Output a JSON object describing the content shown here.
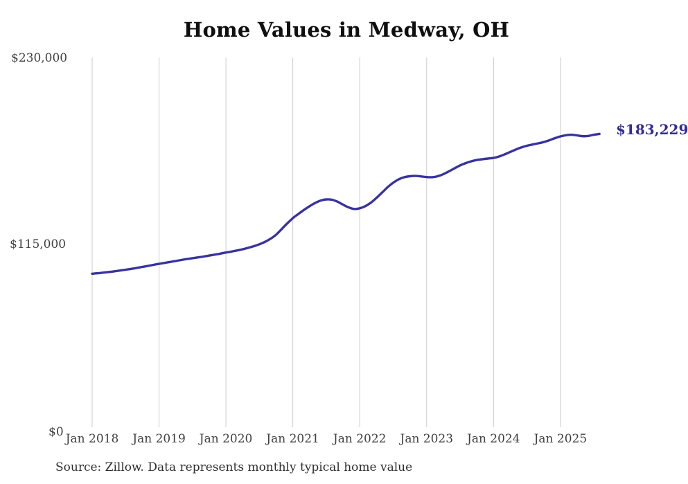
{
  "title": "Home Values in Medway, OH",
  "source_note": "Source: Zillow. Data represents monthly typical home value",
  "end_label": "$183,229",
  "colors": {
    "line": "#3833a0",
    "end_label_text": "#312b94",
    "gridline": "#cbcbcb",
    "title_text": "#0f0f0f",
    "axis_text": "#3f3f3f",
    "source_text": "#2e2e2e",
    "background": "#ffffff"
  },
  "chart_data": {
    "type": "line",
    "title": "Home Values in Medway, OH",
    "xlabel": "",
    "ylabel": "",
    "ylim": [
      0,
      230000
    ],
    "grid": "vertical",
    "legend_position": "none",
    "y_ticks": [
      0,
      115000,
      230000
    ],
    "y_tick_labels": [
      "$0",
      "$115,000",
      "$230,000"
    ],
    "x_tick_labels": [
      "Jan 2018",
      "Jan 2019",
      "Jan 2020",
      "Jan 2021",
      "Jan 2022",
      "Jan 2023",
      "Jan 2024",
      "Jan 2025"
    ],
    "end_value": 183229,
    "series": [
      {
        "name": "Monthly typical home value",
        "start_month": "2018-01",
        "end_month": "2025-08",
        "values": [
          96900,
          97200,
          97600,
          98000,
          98400,
          98900,
          99400,
          99900,
          100500,
          101100,
          101700,
          102400,
          103000,
          103600,
          104200,
          104800,
          105400,
          106000,
          106500,
          107000,
          107500,
          108100,
          108700,
          109300,
          110000,
          110600,
          111300,
          112000,
          112900,
          113900,
          115100,
          116600,
          118500,
          121000,
          124500,
          128000,
          131200,
          133800,
          136300,
          138600,
          140600,
          142100,
          142800,
          142600,
          141400,
          139600,
          137900,
          136900,
          137300,
          138600,
          140800,
          143700,
          147000,
          150300,
          153100,
          155200,
          156500,
          157100,
          157300,
          157000,
          156600,
          156500,
          157100,
          158400,
          160100,
          162000,
          163800,
          165200,
          166300,
          167100,
          167600,
          168000,
          168400,
          169300,
          170600,
          172100,
          173600,
          174900,
          175900,
          176700,
          177400,
          178200,
          179300,
          180600,
          181700,
          182400,
          182700,
          182300,
          181800,
          182000,
          182700,
          183229
        ]
      }
    ]
  }
}
